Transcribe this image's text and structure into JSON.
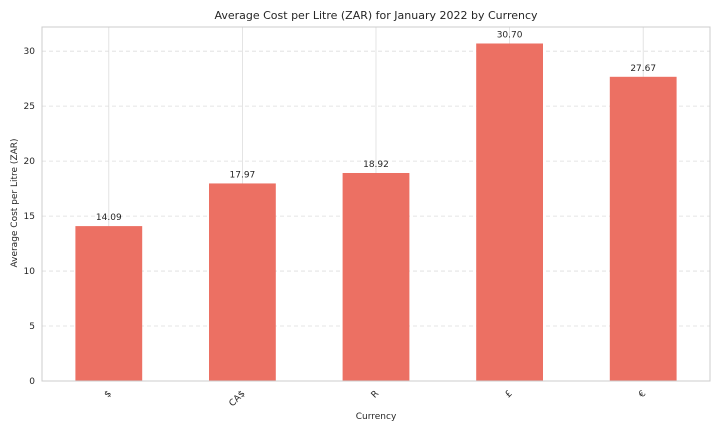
{
  "chart_data": {
    "type": "bar",
    "title": "Average Cost per Litre (ZAR) for January 2022 by Currency",
    "xlabel": "Currency",
    "ylabel": "Average Cost per Litre (ZAR)",
    "categories": [
      "$",
      "CA$",
      "R",
      "£",
      "€"
    ],
    "values": [
      14.09,
      17.97,
      18.92,
      30.7,
      27.67
    ],
    "value_labels": [
      "14.09",
      "17.97",
      "18.92",
      "30.70",
      "27.67"
    ],
    "yticks": [
      0,
      5,
      10,
      15,
      20,
      25,
      30
    ],
    "ylim": [
      0,
      32.2
    ],
    "grid": true,
    "bar_color": "#ec7063",
    "grid_color": "#dddddd",
    "axis_color": "#cccccc"
  }
}
